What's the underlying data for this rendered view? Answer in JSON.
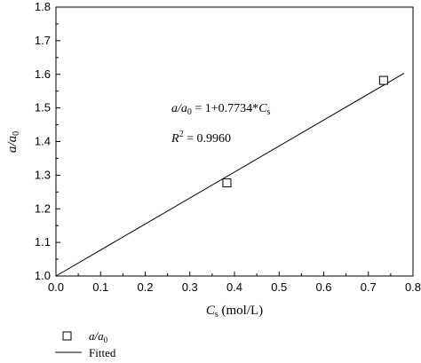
{
  "chart_data": {
    "type": "scatter",
    "xlim": [
      0.0,
      0.8
    ],
    "ylim": [
      1.0,
      1.8
    ],
    "x_ticks": [
      "0.0",
      "0.1",
      "0.2",
      "0.3",
      "0.4",
      "0.5",
      "0.6",
      "0.7",
      "0.8"
    ],
    "y_ticks": [
      "1.0",
      "1.1",
      "1.2",
      "1.3",
      "1.4",
      "1.5",
      "1.6",
      "1.7",
      "1.8"
    ],
    "xlabel": {
      "main": "C",
      "sub": "s",
      "rest": " (mol/L)"
    },
    "ylabel": {
      "main": "a/a",
      "sub": "0"
    },
    "grid": false,
    "series": [
      {
        "name": {
          "main": "a/a",
          "sub": "0"
        },
        "kind": "scatter",
        "marker": "open-square",
        "points": [
          {
            "x": 0.383,
            "y": 1.277
          },
          {
            "x": 0.734,
            "y": 1.582
          }
        ]
      },
      {
        "name": "Fitted",
        "kind": "line",
        "intercept": 1,
        "slope": 0.7734,
        "x_range": [
          0.0,
          0.78
        ]
      }
    ],
    "annotations": {
      "equation": {
        "lhs": "a/a",
        "lhs_sub": "0",
        "mid": " = 1+0.7734*",
        "var": "C",
        "var_sub": "s"
      },
      "r2": {
        "label": "R",
        "sup": "2",
        "value": " = 0.9960"
      }
    },
    "legend_placement": "bottom-left below plot"
  }
}
